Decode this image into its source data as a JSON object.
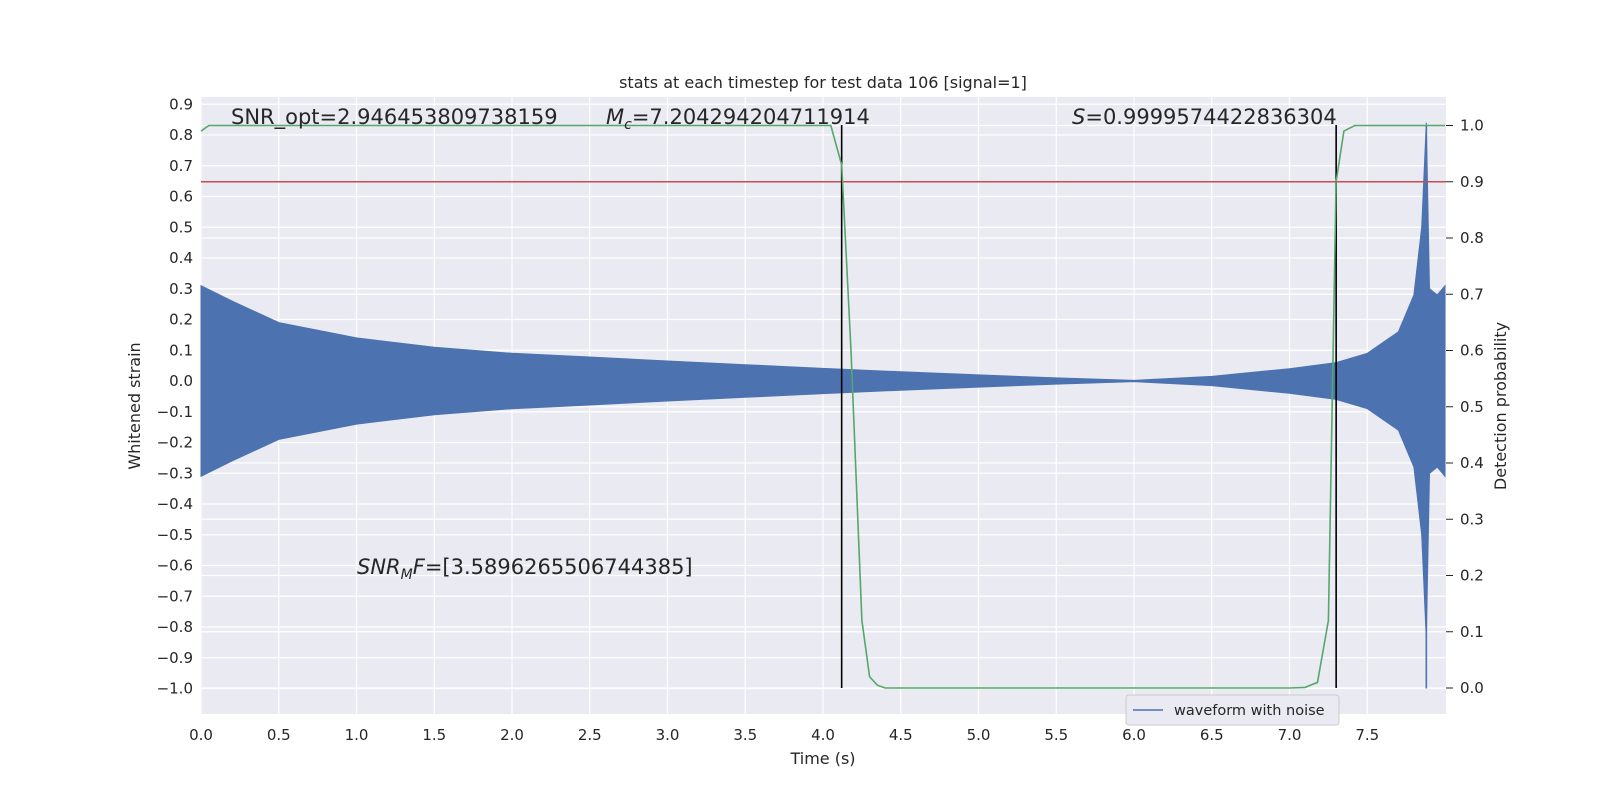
{
  "chart_data": {
    "type": "line",
    "title": "stats at each timestep for test data 106 [signal=1]",
    "xlabel": "Time (s)",
    "ylabel": "Whitened strain",
    "y2label": "Detection probability",
    "xlim": [
      0.0,
      8.0
    ],
    "ylim": [
      -1.09,
      0.93
    ],
    "y2lim": [
      -0.0475,
      1.045
    ],
    "xticks": [
      "0.0",
      "0.5",
      "1.0",
      "1.5",
      "2.0",
      "2.5",
      "3.0",
      "3.5",
      "4.0",
      "4.5",
      "5.0",
      "5.5",
      "6.0",
      "6.5",
      "7.0",
      "7.5"
    ],
    "yticks": [
      "0.9",
      "0.8",
      "0.7",
      "0.6",
      "0.5",
      "0.4",
      "0.3",
      "0.2",
      "0.1",
      "0.0",
      "−0.1",
      "−0.2",
      "−0.3",
      "−0.4",
      "−0.5",
      "−0.6",
      "−0.7",
      "−0.8",
      "−0.9",
      "−1.0"
    ],
    "y2ticks": [
      "1.0",
      "0.9",
      "0.8",
      "0.7",
      "0.6",
      "0.5",
      "0.4",
      "0.3",
      "0.2",
      "0.1",
      "0.0"
    ],
    "grid": true,
    "legend": {
      "placement": "lower-right",
      "entries": [
        "waveform with noise"
      ]
    },
    "annotations": {
      "snr_opt": "SNR_opt=2.946453809738159",
      "mc_symbol": "M",
      "mc_subscript": "c",
      "mc_value": "=7.204294204711914",
      "s_symbol": "S",
      "s_value": "=0.9999574422836304",
      "snrmf_symbol": "SNR",
      "snrmf_subscript": "M",
      "snrmf_symbol2": "F",
      "snrmf_value": "=[3.5896265506744385]"
    },
    "threshold": {
      "axis": "y2",
      "value": 0.9,
      "color": "#c44e52"
    },
    "vlines": [
      4.12,
      7.3
    ],
    "waveform": {
      "name": "waveform with noise",
      "color": "#4c72b0",
      "envelope": [
        {
          "t": 0.0,
          "amp": 0.31
        },
        {
          "t": 0.2,
          "amp": 0.26
        },
        {
          "t": 0.5,
          "amp": 0.19
        },
        {
          "t": 1.0,
          "amp": 0.14
        },
        {
          "t": 1.5,
          "amp": 0.11
        },
        {
          "t": 2.0,
          "amp": 0.09
        },
        {
          "t": 2.5,
          "amp": 0.078
        },
        {
          "t": 3.0,
          "amp": 0.065
        },
        {
          "t": 3.5,
          "amp": 0.053
        },
        {
          "t": 4.0,
          "amp": 0.041
        },
        {
          "t": 4.5,
          "amp": 0.03
        },
        {
          "t": 5.0,
          "amp": 0.02
        },
        {
          "t": 5.5,
          "amp": 0.01
        },
        {
          "t": 6.0,
          "amp": 0.002
        },
        {
          "t": 6.5,
          "amp": 0.015
        },
        {
          "t": 7.0,
          "amp": 0.04
        },
        {
          "t": 7.3,
          "amp": 0.06
        },
        {
          "t": 7.5,
          "amp": 0.09
        },
        {
          "t": 7.7,
          "amp": 0.16
        },
        {
          "t": 7.8,
          "amp": 0.28
        },
        {
          "t": 7.85,
          "amp": 0.5
        },
        {
          "t": 7.88,
          "amp": 0.84
        },
        {
          "t": 7.9,
          "amp": 0.3
        },
        {
          "t": 7.95,
          "amp": 0.28
        },
        {
          "t": 8.0,
          "amp": 0.31
        }
      ],
      "spike": {
        "t": 7.88,
        "high": 0.83,
        "low": -1.0
      }
    },
    "detection_probability": {
      "color": "#55a868",
      "x": [
        0.0,
        0.05,
        4.05,
        4.12,
        4.18,
        4.25,
        4.3,
        4.35,
        4.4,
        5.0,
        6.0,
        7.0,
        7.1,
        7.18,
        7.25,
        7.3,
        7.35,
        7.42,
        7.5,
        7.9,
        8.0
      ],
      "y": [
        0.99,
        1.0,
        1.0,
        0.93,
        0.6,
        0.12,
        0.02,
        0.005,
        0.0,
        0.0,
        0.0,
        0.0,
        0.001,
        0.01,
        0.12,
        0.9,
        0.99,
        1.0,
        1.0,
        1.0,
        1.0
      ]
    }
  }
}
